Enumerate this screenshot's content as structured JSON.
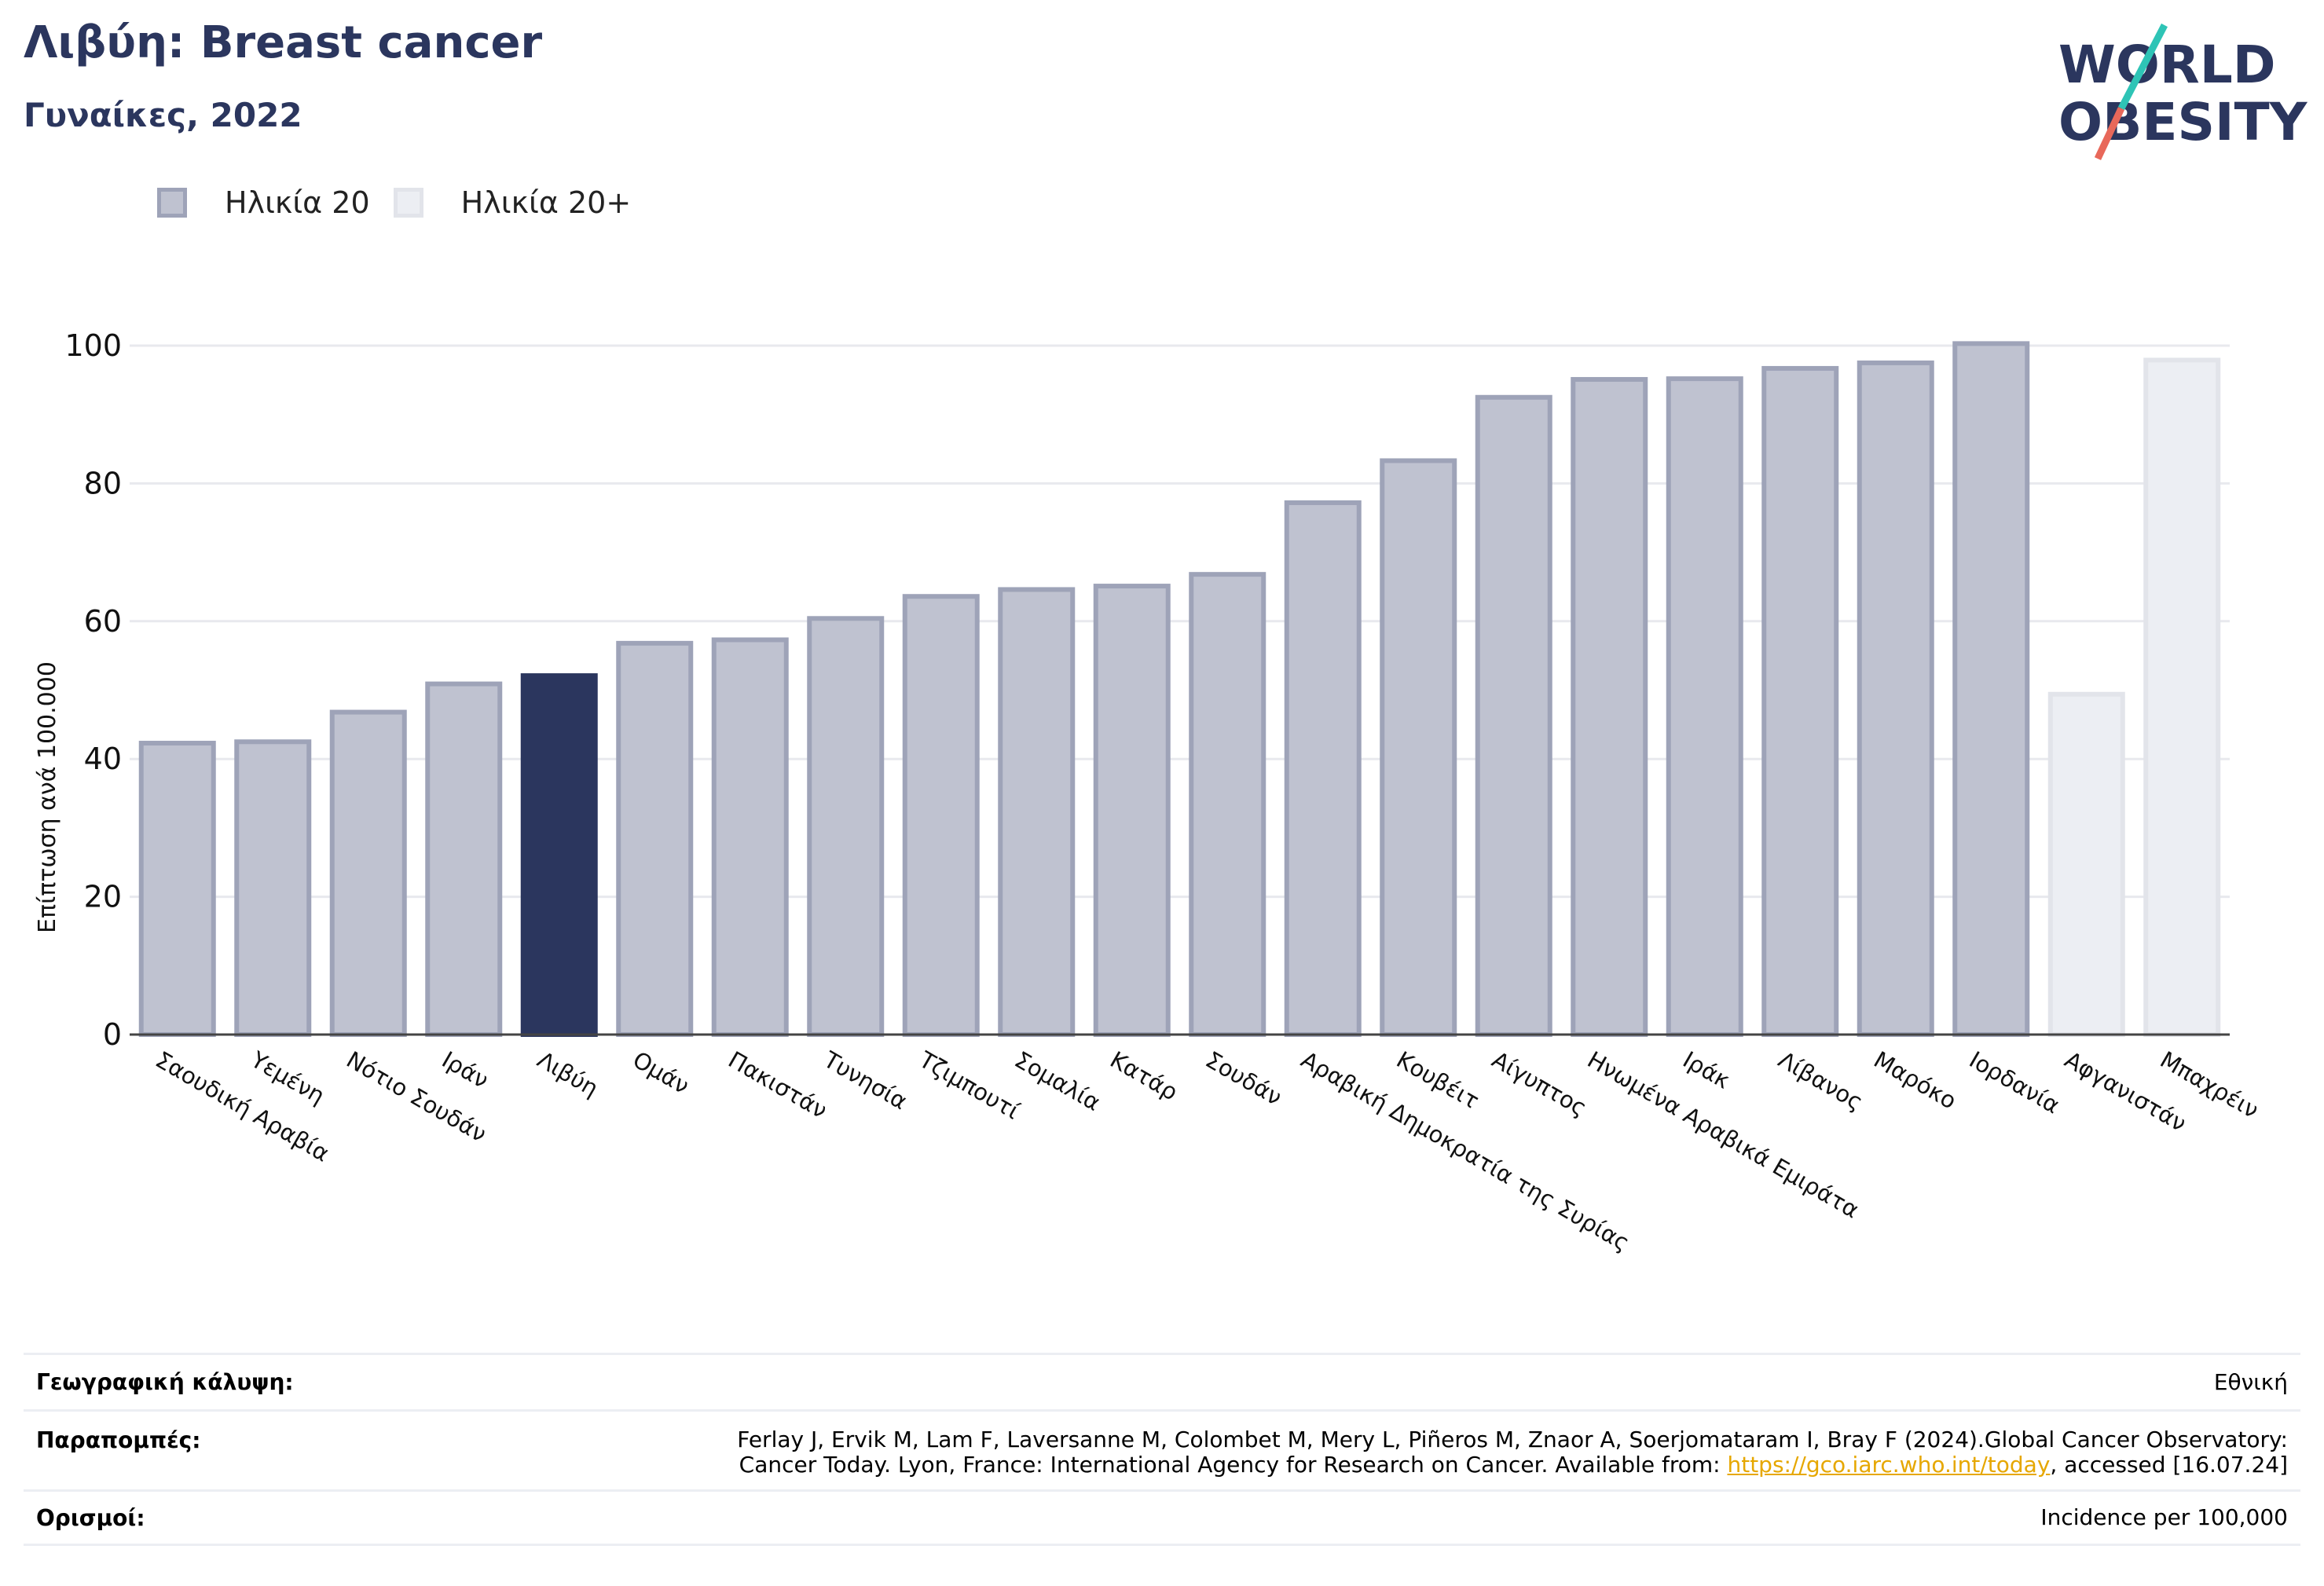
{
  "header": {
    "title": "Λιβύη: Breast cancer",
    "subtitle": "Γυναίκες, 2022"
  },
  "logo": {
    "line1": "WORLD",
    "line2": "OBESITY",
    "slash_colors": [
      "#2ec4b6",
      "#e8685a"
    ],
    "text_color": "#2b365e"
  },
  "legend": {
    "items": [
      {
        "label": "Ηλικία 20",
        "color": "#bfc2d0",
        "border": "#9ea3b8"
      },
      {
        "label": "Ηλικία 20+",
        "color": "#eceef3",
        "border": "#e2e4ea"
      }
    ]
  },
  "chart_data": {
    "type": "bar",
    "ylabel": "Επίπτωση ανά 100.000",
    "ylim": [
      0,
      100
    ],
    "yticks": [
      0,
      20,
      40,
      60,
      80,
      100
    ],
    "grid": true,
    "legend_position": "top-left",
    "highlight_color": "#2b365e",
    "categories": [
      "Σαουδική Αραβία",
      "Υεμένη",
      "Νότιο Σουδάν",
      "Ιράν",
      "Λιβύη",
      "Ομάν",
      "Πακιστάν",
      "Τυνησία",
      "Τζιμπουτί",
      "Σομαλία",
      "Κατάρ",
      "Σουδάν",
      "Αραβική Δημοκρατία της Συρίας",
      "Κουβέιτ",
      "Αίγυπτος",
      "Ηνωμένα Αραβικά Εμιράτα",
      "Ιράκ",
      "Λίβανος",
      "Μαρόκο",
      "Ιορδανία",
      "Αφγανιστάν",
      "Μπαχρέιν"
    ],
    "values": [
      42.3,
      42.5,
      46.8,
      50.9,
      52.1,
      56.8,
      57.3,
      60.4,
      63.6,
      64.6,
      65.1,
      66.8,
      77.2,
      83.3,
      92.5,
      95.1,
      95.2,
      96.7,
      97.5,
      100.3,
      49.4,
      97.9
    ],
    "series_group": [
      "20",
      "20",
      "20",
      "20",
      "20",
      "20",
      "20",
      "20",
      "20",
      "20",
      "20",
      "20",
      "20",
      "20",
      "20",
      "20",
      "20",
      "20",
      "20",
      "20",
      "20+",
      "20+"
    ],
    "highlight": "Λιβύη"
  },
  "info": {
    "coverage_label": "Γεωγραφική κάλυψη:",
    "coverage_value": "Εθνική",
    "references_label": "Παραπομπές:",
    "references_line1": "Ferlay J, Ervik M, Lam F, Laversanne M, Colombet M, Mery L, Piñeros M, Znaor A, Soerjomataram I, Bray F (2024).Global Cancer Observatory:",
    "references_line2_pre": "Cancer Today. Lyon, France: International Agency for Research on Cancer. Available from: ",
    "references_link": "https://gco.iarc.who.int/today",
    "references_line2_post": ", accessed [16.07.24]",
    "definitions_label": "Ορισμοί:",
    "definitions_value": "Incidence per 100,000"
  }
}
